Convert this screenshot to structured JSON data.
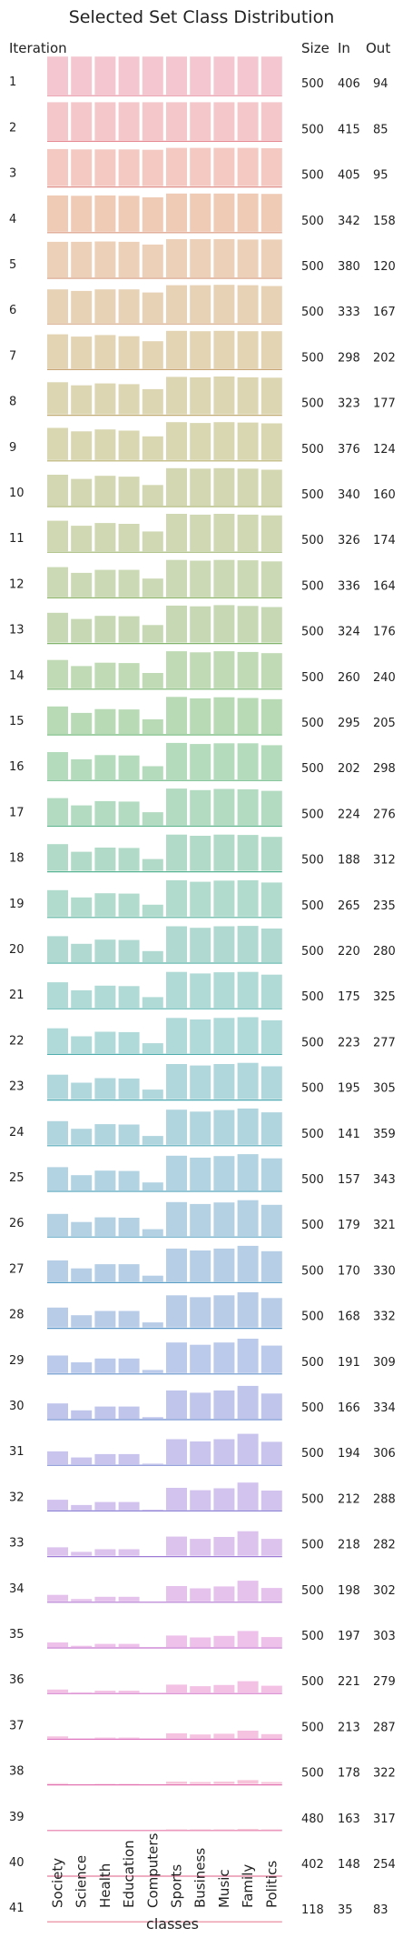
{
  "chart_data": {
    "type": "bar",
    "title": "Selected Set Class Distribution",
    "xlabel": "classes",
    "row_label_header": "Iteration",
    "table_headers": [
      "Size",
      "In",
      "Out"
    ],
    "categories": [
      "Society",
      "Science",
      "Health",
      "Education",
      "Computers",
      "Sports",
      "Business",
      "Music",
      "Family",
      "Politics"
    ],
    "rows": [
      {
        "iteration": "1",
        "size": "500",
        "in": "406",
        "out": "94",
        "color": "#f4c7d0",
        "line": "#e58a9c",
        "bars": [
          1.0,
          1.0,
          1.0,
          1.0,
          1.0,
          1.0,
          1.0,
          1.0,
          1.0,
          1.0
        ]
      },
      {
        "iteration": "2",
        "size": "500",
        "in": "415",
        "out": "85",
        "color": "#f4c8cb",
        "line": "#e58a93",
        "bars": [
          1.0,
          1.0,
          1.0,
          1.0,
          1.0,
          1.0,
          1.0,
          1.0,
          1.0,
          1.0
        ]
      },
      {
        "iteration": "3",
        "size": "500",
        "in": "405",
        "out": "95",
        "color": "#f3c9c2",
        "line": "#e0908a",
        "bars": [
          0.97,
          0.96,
          0.96,
          0.96,
          0.95,
          1.0,
          1.0,
          1.0,
          1.0,
          0.99
        ]
      },
      {
        "iteration": "4",
        "size": "500",
        "in": "342",
        "out": "158",
        "color": "#efcbb5",
        "line": "#d9957d",
        "bars": [
          0.95,
          0.94,
          0.95,
          0.94,
          0.9,
          1.0,
          1.0,
          1.0,
          1.0,
          0.99
        ]
      },
      {
        "iteration": "5",
        "size": "500",
        "in": "380",
        "out": "120",
        "color": "#ecd0b8",
        "line": "#d59a7a",
        "bars": [
          0.93,
          0.93,
          0.94,
          0.93,
          0.86,
          1.0,
          1.0,
          1.0,
          0.99,
          0.99
        ]
      },
      {
        "iteration": "6",
        "size": "500",
        "in": "333",
        "out": "167",
        "color": "#e8d2b6",
        "line": "#d09f78",
        "bars": [
          0.88,
          0.84,
          0.88,
          0.88,
          0.8,
          0.99,
          0.99,
          1.0,
          0.99,
          0.97
        ]
      },
      {
        "iteration": "7",
        "size": "500",
        "in": "298",
        "out": "202",
        "color": "#e3d4b3",
        "line": "#c9a474",
        "bars": [
          0.9,
          0.84,
          0.88,
          0.85,
          0.72,
          0.99,
          0.98,
          0.99,
          0.98,
          0.98
        ]
      },
      {
        "iteration": "8",
        "size": "500",
        "in": "323",
        "out": "177",
        "color": "#dcd6b2",
        "line": "#c0aa72",
        "bars": [
          0.84,
          0.76,
          0.81,
          0.79,
          0.66,
          0.98,
          0.97,
          0.99,
          0.97,
          0.96
        ]
      },
      {
        "iteration": "9",
        "size": "500",
        "in": "376",
        "out": "124",
        "color": "#d9d7b2",
        "line": "#b6ad6c",
        "bars": [
          0.84,
          0.75,
          0.8,
          0.77,
          0.62,
          0.99,
          0.97,
          0.99,
          0.98,
          0.96
        ]
      },
      {
        "iteration": "10",
        "size": "500",
        "in": "340",
        "out": "160",
        "color": "#d4d8b2",
        "line": "#a8b06a",
        "bars": [
          0.81,
          0.7,
          0.78,
          0.76,
          0.54,
          0.98,
          0.97,
          0.98,
          0.97,
          0.94
        ]
      },
      {
        "iteration": "11",
        "size": "500",
        "in": "326",
        "out": "174",
        "color": "#cfd8b2",
        "line": "#9bb26a",
        "bars": [
          0.8,
          0.67,
          0.74,
          0.72,
          0.52,
          0.98,
          0.96,
          0.98,
          0.96,
          0.94
        ]
      },
      {
        "iteration": "12",
        "size": "500",
        "in": "336",
        "out": "164",
        "color": "#cbd9b4",
        "line": "#8fb46c",
        "bars": [
          0.78,
          0.63,
          0.71,
          0.71,
          0.48,
          0.97,
          0.95,
          0.97,
          0.96,
          0.93
        ]
      },
      {
        "iteration": "13",
        "size": "500",
        "in": "324",
        "out": "176",
        "color": "#c6d9b4",
        "line": "#84b56e",
        "bars": [
          0.78,
          0.62,
          0.7,
          0.69,
          0.46,
          0.97,
          0.95,
          0.98,
          0.96,
          0.93
        ]
      },
      {
        "iteration": "14",
        "size": "500",
        "in": "260",
        "out": "240",
        "color": "#bfdab4",
        "line": "#76b46e",
        "bars": [
          0.74,
          0.58,
          0.67,
          0.66,
          0.4,
          0.97,
          0.94,
          0.97,
          0.95,
          0.92
        ]
      },
      {
        "iteration": "15",
        "size": "500",
        "in": "295",
        "out": "205",
        "color": "#b8dab5",
        "line": "#6bb470",
        "bars": [
          0.72,
          0.55,
          0.65,
          0.64,
          0.38,
          0.97,
          0.93,
          0.96,
          0.94,
          0.91
        ]
      },
      {
        "iteration": "16",
        "size": "500",
        "in": "202",
        "out": "298",
        "color": "#b4dbbb",
        "line": "#62b37e",
        "bars": [
          0.72,
          0.53,
          0.64,
          0.63,
          0.35,
          0.96,
          0.93,
          0.95,
          0.95,
          0.9
        ]
      },
      {
        "iteration": "17",
        "size": "500",
        "in": "224",
        "out": "276",
        "color": "#b2dbc2",
        "line": "#5cb38a",
        "bars": [
          0.71,
          0.52,
          0.63,
          0.62,
          0.34,
          0.96,
          0.92,
          0.95,
          0.94,
          0.9
        ]
      },
      {
        "iteration": "18",
        "size": "500",
        "in": "188",
        "out": "312",
        "color": "#b1dbc8",
        "line": "#58b294",
        "bars": [
          0.7,
          0.5,
          0.61,
          0.6,
          0.31,
          0.95,
          0.92,
          0.95,
          0.94,
          0.89
        ]
      },
      {
        "iteration": "19",
        "size": "500",
        "in": "265",
        "out": "235",
        "color": "#b0dbcd",
        "line": "#55b19b",
        "bars": [
          0.69,
          0.5,
          0.61,
          0.6,
          0.31,
          0.95,
          0.91,
          0.94,
          0.95,
          0.89
        ]
      },
      {
        "iteration": "20",
        "size": "500",
        "in": "220",
        "out": "280",
        "color": "#b0dad1",
        "line": "#53afa2",
        "bars": [
          0.68,
          0.48,
          0.59,
          0.58,
          0.29,
          0.94,
          0.9,
          0.94,
          0.95,
          0.88
        ]
      },
      {
        "iteration": "21",
        "size": "500",
        "in": "175",
        "out": "325",
        "color": "#b0dad5",
        "line": "#51aea8",
        "bars": [
          0.67,
          0.46,
          0.58,
          0.57,
          0.28,
          0.94,
          0.9,
          0.93,
          0.94,
          0.87
        ]
      },
      {
        "iteration": "22",
        "size": "500",
        "in": "223",
        "out": "277",
        "color": "#b0d9d9",
        "line": "#50adae",
        "bars": [
          0.66,
          0.45,
          0.57,
          0.56,
          0.27,
          0.93,
          0.89,
          0.93,
          0.95,
          0.87
        ]
      },
      {
        "iteration": "23",
        "size": "500",
        "in": "195",
        "out": "305",
        "color": "#b0d7dc",
        "line": "#50aab3",
        "bars": [
          0.64,
          0.43,
          0.55,
          0.54,
          0.25,
          0.92,
          0.88,
          0.92,
          0.95,
          0.86
        ]
      },
      {
        "iteration": "24",
        "size": "500",
        "in": "141",
        "out": "359",
        "color": "#b1d5df",
        "line": "#51a7b8",
        "bars": [
          0.62,
          0.42,
          0.54,
          0.53,
          0.23,
          0.92,
          0.87,
          0.91,
          0.95,
          0.85
        ]
      },
      {
        "iteration": "25",
        "size": "500",
        "in": "157",
        "out": "343",
        "color": "#b2d3e2",
        "line": "#53a4bd",
        "bars": [
          0.61,
          0.4,
          0.52,
          0.51,
          0.21,
          0.91,
          0.86,
          0.9,
          0.95,
          0.84
        ]
      },
      {
        "iteration": "26",
        "size": "500",
        "in": "179",
        "out": "321",
        "color": "#b4d1e4",
        "line": "#56a1c1",
        "bars": [
          0.58,
          0.37,
          0.49,
          0.48,
          0.18,
          0.89,
          0.84,
          0.88,
          0.94,
          0.82
        ]
      },
      {
        "iteration": "27",
        "size": "500",
        "in": "170",
        "out": "330",
        "color": "#b6cfe6",
        "line": "#5a9dc5",
        "bars": [
          0.56,
          0.35,
          0.46,
          0.46,
          0.16,
          0.87,
          0.82,
          0.87,
          0.94,
          0.8
        ]
      },
      {
        "iteration": "28",
        "size": "500",
        "in": "168",
        "out": "332",
        "color": "#b8cce8",
        "line": "#5e98c9",
        "bars": [
          0.52,
          0.32,
          0.43,
          0.43,
          0.13,
          0.84,
          0.79,
          0.84,
          0.92,
          0.77
        ]
      },
      {
        "iteration": "29",
        "size": "500",
        "in": "191",
        "out": "309",
        "color": "#bbc9ea",
        "line": "#6392cc",
        "bars": [
          0.46,
          0.28,
          0.38,
          0.38,
          0.08,
          0.8,
          0.74,
          0.8,
          0.9,
          0.72
        ]
      },
      {
        "iteration": "30",
        "size": "500",
        "in": "166",
        "out": "334",
        "color": "#c0c5ec",
        "line": "#6b8bcf",
        "bars": [
          0.4,
          0.22,
          0.32,
          0.32,
          0.04,
          0.74,
          0.68,
          0.74,
          0.86,
          0.66
        ]
      },
      {
        "iteration": "31",
        "size": "500",
        "in": "194",
        "out": "306",
        "color": "#c8c4ee",
        "line": "#7884d1",
        "bars": [
          0.34,
          0.18,
          0.27,
          0.27,
          0.02,
          0.66,
          0.6,
          0.66,
          0.8,
          0.59
        ]
      },
      {
        "iteration": "32",
        "size": "500",
        "in": "212",
        "out": "288",
        "color": "#d2c3ee",
        "line": "#8a7fd3",
        "bars": [
          0.27,
          0.13,
          0.21,
          0.21,
          0.01,
          0.58,
          0.52,
          0.57,
          0.72,
          0.51
        ]
      },
      {
        "iteration": "33",
        "size": "500",
        "in": "218",
        "out": "282",
        "color": "#dcc3ee",
        "line": "#9e7bd4",
        "bars": [
          0.22,
          0.1,
          0.17,
          0.17,
          0.0,
          0.5,
          0.44,
          0.49,
          0.64,
          0.44
        ]
      },
      {
        "iteration": "34",
        "size": "500",
        "in": "198",
        "out": "302",
        "color": "#e5c2ec",
        "line": "#b277d3",
        "bars": [
          0.17,
          0.06,
          0.12,
          0.12,
          0.0,
          0.4,
          0.34,
          0.39,
          0.54,
          0.35
        ]
      },
      {
        "iteration": "35",
        "size": "500",
        "in": "197",
        "out": "303",
        "color": "#edc1e9",
        "line": "#c574d0",
        "bars": [
          0.12,
          0.03,
          0.08,
          0.08,
          0.0,
          0.3,
          0.25,
          0.29,
          0.42,
          0.26
        ]
      },
      {
        "iteration": "36",
        "size": "500",
        "in": "221",
        "out": "279",
        "color": "#f2c1e4",
        "line": "#d372c8",
        "bars": [
          0.08,
          0.01,
          0.05,
          0.05,
          0.0,
          0.21,
          0.17,
          0.2,
          0.3,
          0.18
        ]
      },
      {
        "iteration": "37",
        "size": "500",
        "in": "213",
        "out": "287",
        "color": "#f5c2df",
        "line": "#de72bf",
        "bars": [
          0.05,
          0.0,
          0.02,
          0.02,
          0.0,
          0.13,
          0.1,
          0.12,
          0.2,
          0.11
        ]
      },
      {
        "iteration": "38",
        "size": "500",
        "in": "178",
        "out": "322",
        "color": "#f6c3d9",
        "line": "#e374b3",
        "bars": [
          0.02,
          0.0,
          0.01,
          0.01,
          0.0,
          0.06,
          0.05,
          0.06,
          0.1,
          0.05
        ]
      },
      {
        "iteration": "39",
        "size": "480",
        "in": "163",
        "out": "317",
        "color": "#f6c4d4",
        "line": "#e578a8",
        "bars": [
          0.0,
          0.0,
          0.0,
          0.0,
          0.0,
          0.01,
          0.01,
          0.01,
          0.02,
          0.01
        ]
      },
      {
        "iteration": "40",
        "size": "402",
        "in": "148",
        "out": "254",
        "color": "#f5c5d0",
        "line": "#e57c9e",
        "bars": [
          0.0,
          0.0,
          0.0,
          0.0,
          0.0,
          0.0,
          0.0,
          0.0,
          0.0,
          0.0
        ]
      },
      {
        "iteration": "41",
        "size": "118",
        "in": "35",
        "out": "83",
        "color": "#f4c6cd",
        "line": "#e58096",
        "bars": [
          0.0,
          0.0,
          0.0,
          0.0,
          0.0,
          0.0,
          0.0,
          0.0,
          0.0,
          0.0
        ]
      }
    ]
  }
}
